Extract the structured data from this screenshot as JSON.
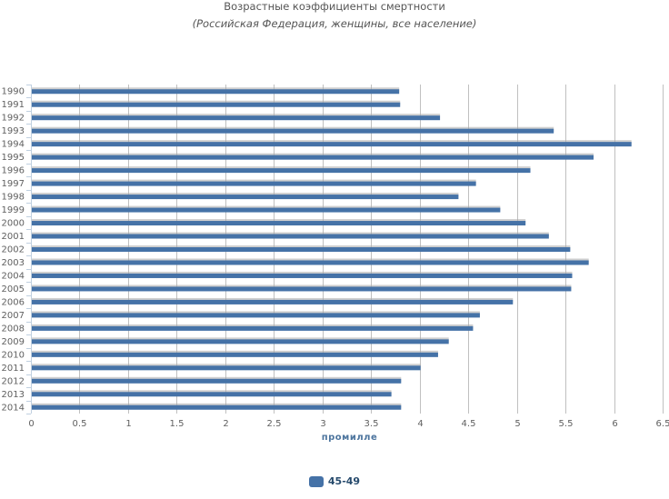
{
  "chart_data": {
    "type": "bar",
    "orientation": "horizontal",
    "title": "Возрастные коэффициенты смертности",
    "subtitle": "(Российская Федерация, женщины, все население)",
    "xlabel": "промилле",
    "ylabel": "",
    "xlim": [
      0,
      6.5
    ],
    "x_ticks": [
      "0",
      "0.5",
      "1",
      "1.5",
      "2",
      "2.5",
      "3",
      "3.5",
      "4",
      "4.5",
      "5",
      "5.5",
      "6",
      "6.5"
    ],
    "grid": true,
    "legend_position": "bottom-center",
    "categories": [
      "1990",
      "1991",
      "1992",
      "1993",
      "1994",
      "1995",
      "1996",
      "1997",
      "1998",
      "1999",
      "2000",
      "2001",
      "2002",
      "2003",
      "2004",
      "2005",
      "2006",
      "2007",
      "2008",
      "2009",
      "2010",
      "2011",
      "2012",
      "2013",
      "2014"
    ],
    "series": [
      {
        "name": "45-49",
        "color": "#4572a7",
        "values": [
          3.78,
          3.79,
          4.2,
          5.37,
          6.17,
          5.78,
          5.13,
          4.57,
          4.39,
          4.82,
          5.08,
          5.32,
          5.54,
          5.73,
          5.56,
          5.55,
          4.95,
          4.61,
          4.54,
          4.29,
          4.18,
          4.0,
          3.8,
          3.7,
          3.8
        ]
      }
    ]
  }
}
